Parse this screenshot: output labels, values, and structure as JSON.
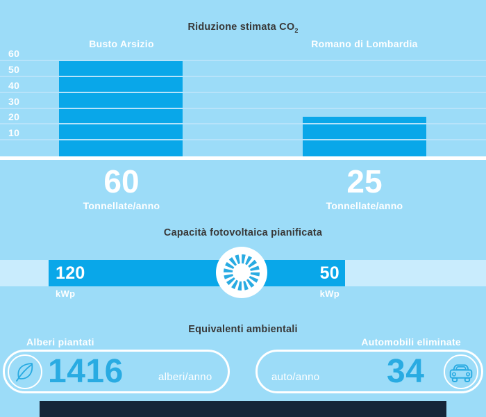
{
  "theme": {
    "background": "#9cdcf8",
    "bar_blue": "#09a7e9",
    "number_blue": "#29abe2",
    "gridline": "#b7e3fa",
    "track": "#c9ecfd",
    "title_text": "#383838",
    "white": "#ffffff",
    "footer_bar": "#152539"
  },
  "chart_data": [
    {
      "type": "bar",
      "title": "Riduzione stimata CO2",
      "title_display": {
        "main": "Riduzione stimata CO",
        "subscript": "2"
      },
      "categories": [
        "Busto Arsizio",
        "Romano di Lombardia"
      ],
      "values": [
        60,
        25
      ],
      "value_unit": "Tonnellate/anno",
      "xlabel": "",
      "ylabel": "",
      "ylim": [
        0,
        65
      ],
      "yticks": [
        10,
        20,
        30,
        40,
        50,
        60
      ],
      "grid": true,
      "legend": false
    },
    {
      "type": "bar",
      "orientation": "horizontal",
      "title": "Capacità fotovoltaica pianificata",
      "categories": [
        "Busto Arsizio",
        "Romano di Lombardia"
      ],
      "values": [
        120,
        50
      ],
      "value_unit": "kWp"
    },
    {
      "type": "table",
      "title": "Equivalenti ambientali",
      "items": [
        {
          "label": "Alberi piantati",
          "value": 1416,
          "unit": "alberi/anno",
          "icon": "leaf-icon"
        },
        {
          "label": "Automobili eliminate",
          "value": 34,
          "unit": "auto/anno",
          "icon": "car-icon"
        }
      ]
    }
  ],
  "icons": {
    "sun": "sun-rays-icon",
    "leaf": "leaf-icon",
    "car": "car-icon"
  }
}
